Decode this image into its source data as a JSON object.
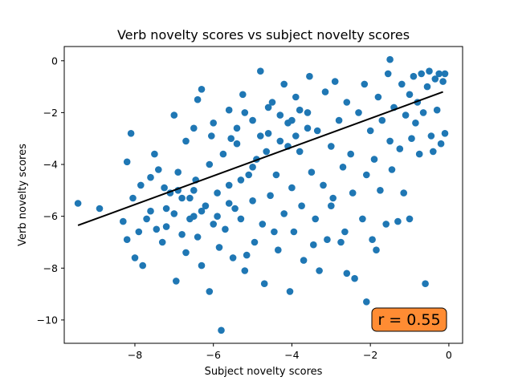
{
  "chart_data": {
    "type": "scatter",
    "title": "Verb novelty scores vs subject novelty scores",
    "xlabel": "Subject novelty scores",
    "ylabel": "Verb novelty scores",
    "xlim": [
      -9.8,
      0.35
    ],
    "ylim": [
      -10.9,
      0.55
    ],
    "xticks": [
      -8,
      -6,
      -4,
      -2,
      0
    ],
    "yticks": [
      0,
      -2,
      -4,
      -6,
      -8,
      -10
    ],
    "xtick_labels": [
      "−8",
      "−6",
      "−4",
      "−2",
      "0"
    ],
    "ytick_labels": [
      "0",
      "−2",
      "−4",
      "−6",
      "−8",
      "−10"
    ],
    "grid": false,
    "point_color": "#1f77b4",
    "fit_line": {
      "color": "#000000",
      "points": [
        [
          -9.45,
          -6.35
        ],
        [
          -0.15,
          -1.2
        ]
      ]
    },
    "annotation": {
      "text": "r = 0.55",
      "location": "bottom-right",
      "box_color": "#ff8c33"
    },
    "series": [
      {
        "name": "points",
        "points": [
          [
            -9.45,
            -5.5
          ],
          [
            -8.9,
            -5.7
          ],
          [
            -8.3,
            -6.2
          ],
          [
            -8.2,
            -6.9
          ],
          [
            -8.2,
            -3.9
          ],
          [
            -8.1,
            -2.8
          ],
          [
            -8.0,
            -7.6
          ],
          [
            -7.9,
            -6.6
          ],
          [
            -7.85,
            -4.8
          ],
          [
            -7.8,
            -7.9
          ],
          [
            -7.7,
            -6.1
          ],
          [
            -7.6,
            -5.8
          ],
          [
            -7.5,
            -3.6
          ],
          [
            -7.45,
            -6.5
          ],
          [
            -7.4,
            -4.2
          ],
          [
            -7.3,
            -7.0
          ],
          [
            -7.25,
            -4.9
          ],
          [
            -7.2,
            -6.4
          ],
          [
            -7.1,
            -5.1
          ],
          [
            -7.0,
            -5.9
          ],
          [
            -7.0,
            -2.1
          ],
          [
            -6.95,
            -8.5
          ],
          [
            -6.9,
            -4.3
          ],
          [
            -6.8,
            -6.7
          ],
          [
            -6.7,
            -3.1
          ],
          [
            -6.7,
            -7.4
          ],
          [
            -6.6,
            -5.3
          ],
          [
            -6.5,
            -6.0
          ],
          [
            -6.5,
            -2.6
          ],
          [
            -6.45,
            -4.6
          ],
          [
            -6.4,
            -6.8
          ],
          [
            -6.3,
            -1.1
          ],
          [
            -6.3,
            -7.9
          ],
          [
            -6.2,
            -5.6
          ],
          [
            -6.1,
            -4.0
          ],
          [
            -6.1,
            -8.9
          ],
          [
            -6.0,
            -6.3
          ],
          [
            -6.0,
            -2.4
          ],
          [
            -5.9,
            -5.1
          ],
          [
            -5.85,
            -7.2
          ],
          [
            -5.8,
            -10.4
          ],
          [
            -5.75,
            -3.6
          ],
          [
            -5.7,
            -6.5
          ],
          [
            -5.6,
            -1.9
          ],
          [
            -5.6,
            -4.8
          ],
          [
            -5.5,
            -7.6
          ],
          [
            -5.45,
            -5.7
          ],
          [
            -5.4,
            -3.2
          ],
          [
            -5.3,
            -6.1
          ],
          [
            -5.25,
            -1.3
          ],
          [
            -5.2,
            -8.1
          ],
          [
            -5.1,
            -4.4
          ],
          [
            -5.0,
            -5.4
          ],
          [
            -5.0,
            -2.3
          ],
          [
            -4.95,
            -7.0
          ],
          [
            -4.9,
            -3.8
          ],
          [
            -4.8,
            -0.4
          ],
          [
            -4.75,
            -6.3
          ],
          [
            -4.7,
            -8.6
          ],
          [
            -4.6,
            -2.8
          ],
          [
            -4.55,
            -5.2
          ],
          [
            -4.5,
            -1.6
          ],
          [
            -4.4,
            -4.4
          ],
          [
            -4.35,
            -7.3
          ],
          [
            -4.3,
            -3.1
          ],
          [
            -4.2,
            -5.9
          ],
          [
            -4.2,
            -0.9
          ],
          [
            -4.1,
            -2.4
          ],
          [
            -4.05,
            -8.9
          ],
          [
            -4.0,
            -4.9
          ],
          [
            -3.95,
            -6.6
          ],
          [
            -3.9,
            -1.4
          ],
          [
            -3.8,
            -3.5
          ],
          [
            -3.75,
            -5.6
          ],
          [
            -3.7,
            -7.7
          ],
          [
            -3.6,
            -2.0
          ],
          [
            -3.55,
            -0.6
          ],
          [
            -3.5,
            -4.3
          ],
          [
            -3.4,
            -6.1
          ],
          [
            -3.35,
            -2.7
          ],
          [
            -3.3,
            -8.1
          ],
          [
            -3.2,
            -4.8
          ],
          [
            -3.15,
            -1.2
          ],
          [
            -3.1,
            -6.9
          ],
          [
            -3.0,
            -3.3
          ],
          [
            -2.95,
            -5.3
          ],
          [
            -2.9,
            -0.8
          ],
          [
            -2.8,
            -2.3
          ],
          [
            -2.7,
            -4.1
          ],
          [
            -2.65,
            -6.6
          ],
          [
            -2.6,
            -1.6
          ],
          [
            -2.5,
            -3.6
          ],
          [
            -2.45,
            -5.1
          ],
          [
            -2.4,
            -8.4
          ],
          [
            -2.3,
            -2.0
          ],
          [
            -2.2,
            -6.1
          ],
          [
            -2.15,
            -0.9
          ],
          [
            -2.1,
            -4.4
          ],
          [
            -2.0,
            -2.7
          ],
          [
            -1.95,
            -6.9
          ],
          [
            -1.9,
            -3.8
          ],
          [
            -1.8,
            -1.4
          ],
          [
            -1.75,
            -5.0
          ],
          [
            -1.7,
            -2.3
          ],
          [
            -1.6,
            -6.3
          ],
          [
            -1.55,
            -0.5
          ],
          [
            -1.5,
            -3.1
          ],
          [
            -1.45,
            -4.2
          ],
          [
            -1.4,
            -1.8
          ],
          [
            -1.3,
            -6.2
          ],
          [
            -1.25,
            -3.4
          ],
          [
            -1.2,
            -0.9
          ],
          [
            -1.15,
            -5.1
          ],
          [
            -1.1,
            -2.1
          ],
          [
            -1.0,
            -6.1
          ],
          [
            -1.0,
            -1.3
          ],
          [
            -0.95,
            -3.0
          ],
          [
            -0.9,
            -0.6
          ],
          [
            -0.85,
            -2.4
          ],
          [
            -0.8,
            -1.6
          ],
          [
            -0.75,
            -3.6
          ],
          [
            -0.7,
            -0.5
          ],
          [
            -0.65,
            -2.0
          ],
          [
            -0.6,
            -8.6
          ],
          [
            -0.55,
            -1.0
          ],
          [
            -0.5,
            -0.4
          ],
          [
            -0.45,
            -2.9
          ],
          [
            -0.4,
            -3.5
          ],
          [
            -0.35,
            -0.7
          ],
          [
            -0.3,
            -1.9
          ],
          [
            -0.25,
            -0.5
          ],
          [
            -0.2,
            -3.2
          ],
          [
            -0.15,
            -0.8
          ],
          [
            -0.1,
            -2.8
          ],
          [
            -0.1,
            -0.5
          ],
          [
            -1.5,
            0.05
          ],
          [
            -2.1,
            -9.3
          ],
          [
            -1.85,
            -7.3
          ],
          [
            -2.6,
            -8.2
          ],
          [
            -3.0,
            -5.6
          ],
          [
            -5.2,
            -2.0
          ],
          [
            -4.6,
            -1.8
          ],
          [
            -4.3,
            -2.1
          ],
          [
            -4.0,
            -2.3
          ],
          [
            -3.8,
            -1.9
          ],
          [
            -3.6,
            -2.6
          ],
          [
            -5.4,
            -2.6
          ],
          [
            -4.8,
            -2.9
          ],
          [
            -4.1,
            -3.3
          ],
          [
            -3.9,
            -2.9
          ],
          [
            -6.9,
            -5.0
          ],
          [
            -6.6,
            -6.1
          ],
          [
            -6.3,
            -5.8
          ],
          [
            -5.9,
            -6.0
          ],
          [
            -5.6,
            -5.5
          ],
          [
            -7.2,
            -5.7
          ],
          [
            -6.8,
            -5.3
          ],
          [
            -6.5,
            -5.0
          ],
          [
            -5.3,
            -4.6
          ],
          [
            -5.0,
            -4.1
          ],
          [
            -6.4,
            -1.5
          ],
          [
            -6.05,
            -2.9
          ],
          [
            -5.15,
            -7.5
          ],
          [
            -4.45,
            -6.6
          ],
          [
            -3.45,
            -7.1
          ],
          [
            -2.75,
            -7.0
          ],
          [
            -7.6,
            -4.5
          ],
          [
            -8.05,
            -5.3
          ],
          [
            -5.55,
            -3.0
          ],
          [
            -4.65,
            -3.5
          ]
        ]
      }
    ]
  }
}
